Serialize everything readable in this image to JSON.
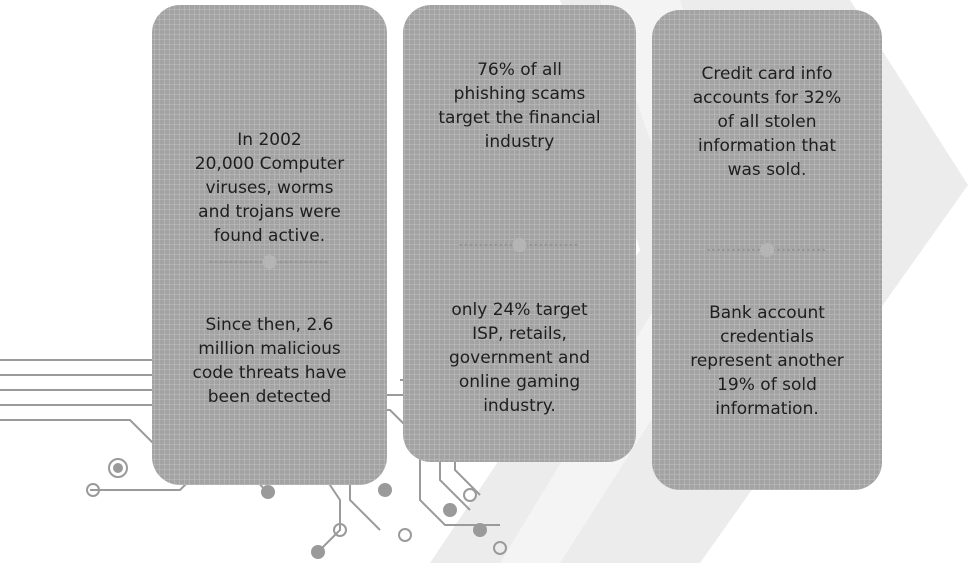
{
  "cards": [
    {
      "top": [
        "In 2002",
        "20,000 Computer",
        "viruses, worms",
        "and trojans were",
        "found active."
      ],
      "bottom": [
        "Since then, 2.6",
        "million malicious",
        "code threats have",
        "been detected"
      ]
    },
    {
      "top": [
        "76% of all",
        "phishing scams",
        "target the financial",
        "industry"
      ],
      "bottom": [
        "only 24% target",
        "ISP, retails,",
        "government and",
        "online gaming",
        "industry."
      ]
    },
    {
      "top": [
        "Credit card info",
        "accounts for 32%",
        "of all stolen",
        "information that",
        "was sold."
      ],
      "bottom": [
        "Bank account",
        "credentials",
        "represent another",
        "19% of sold",
        "information."
      ]
    }
  ]
}
